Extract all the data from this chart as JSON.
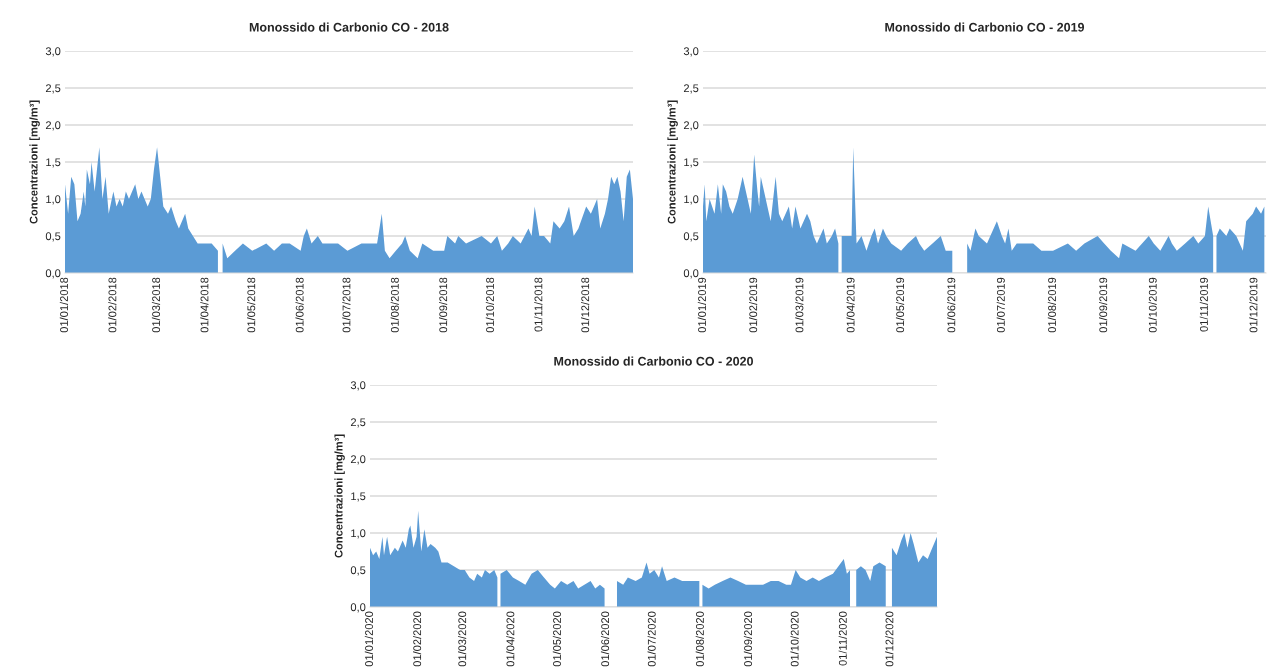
{
  "chart_data": [
    {
      "type": "area",
      "title": "Monossido di Carbonio CO - 2018",
      "ylabel": "Concentrazioni [mg/m³]",
      "grid": "y",
      "xlim": [
        "2018-01-01",
        "2018-12-31"
      ],
      "xticks": [
        {
          "value": "2018-01-01",
          "label": "01/01/2018"
        },
        {
          "value": "2018-02-01",
          "label": "01/02/2018"
        },
        {
          "value": "2018-03-01",
          "label": "01/03/2018"
        },
        {
          "value": "2018-04-01",
          "label": "01/04/2018"
        },
        {
          "value": "2018-05-01",
          "label": "01/05/2018"
        },
        {
          "value": "2018-06-01",
          "label": "01/06/2018"
        },
        {
          "value": "2018-07-01",
          "label": "01/07/2018"
        },
        {
          "value": "2018-08-01",
          "label": "01/08/2018"
        },
        {
          "value": "2018-09-01",
          "label": "01/09/2018"
        },
        {
          "value": "2018-10-01",
          "label": "01/10/2018"
        },
        {
          "value": "2018-11-01",
          "label": "01/11/2018"
        },
        {
          "value": "2018-12-01",
          "label": "01/12/2018"
        }
      ],
      "ylim": [
        0,
        3
      ],
      "yticks": [
        {
          "value": 0,
          "label": "0,0"
        },
        {
          "value": 0.5,
          "label": "0,5"
        },
        {
          "value": 1,
          "label": "1,0"
        },
        {
          "value": 1.5,
          "label": "1,5"
        },
        {
          "value": 2,
          "label": "2,0"
        },
        {
          "value": 2.5,
          "label": "2,5"
        },
        {
          "value": 3,
          "label": "3,0"
        }
      ],
      "x": [
        "2018-01-01",
        "2018-01-03",
        "2018-01-05",
        "2018-01-07",
        "2018-01-09",
        "2018-01-11",
        "2018-01-13",
        "2018-01-14",
        "2018-01-15",
        "2018-01-17",
        "2018-01-18",
        "2018-01-20",
        "2018-01-23",
        "2018-01-25",
        "2018-01-27",
        "2018-01-29",
        "2018-02-01",
        "2018-02-03",
        "2018-02-05",
        "2018-02-07",
        "2018-02-09",
        "2018-02-11",
        "2018-02-13",
        "2018-02-15",
        "2018-02-17",
        "2018-02-19",
        "2018-02-21",
        "2018-02-23",
        "2018-02-25",
        "2018-02-27",
        "2018-03-01",
        "2018-03-02",
        "2018-03-03",
        "2018-03-05",
        "2018-03-08",
        "2018-03-10",
        "2018-03-13",
        "2018-03-15",
        "2018-03-19",
        "2018-03-21",
        "2018-03-24",
        "2018-03-27",
        "2018-04-05",
        "2018-04-09",
        "2018-04-10",
        "2018-04-12",
        "2018-04-15",
        "2018-04-20",
        "2018-04-25",
        "2018-05-01",
        "2018-05-10",
        "2018-05-15",
        "2018-05-20",
        "2018-05-25",
        "2018-06-01",
        "2018-06-03",
        "2018-06-05",
        "2018-06-08",
        "2018-06-12",
        "2018-06-15",
        "2018-06-25",
        "2018-07-01",
        "2018-07-10",
        "2018-07-20",
        "2018-07-23",
        "2018-07-25",
        "2018-07-28",
        "2018-08-01",
        "2018-08-05",
        "2018-08-07",
        "2018-08-10",
        "2018-08-15",
        "2018-08-18",
        "2018-08-25",
        "2018-09-01",
        "2018-09-03",
        "2018-09-08",
        "2018-09-10",
        "2018-09-15",
        "2018-09-25",
        "2018-10-01",
        "2018-10-05",
        "2018-10-08",
        "2018-10-12",
        "2018-10-15",
        "2018-10-20",
        "2018-10-25",
        "2018-10-27",
        "2018-10-29",
        "2018-11-01",
        "2018-11-04",
        "2018-11-08",
        "2018-11-10",
        "2018-11-14",
        "2018-11-17",
        "2018-11-20",
        "2018-11-23",
        "2018-11-26",
        "2018-12-01",
        "2018-12-04",
        "2018-12-06",
        "2018-12-08",
        "2018-12-10",
        "2018-12-13",
        "2018-12-15",
        "2018-12-17",
        "2018-12-19",
        "2018-12-21",
        "2018-12-23",
        "2018-12-25",
        "2018-12-27",
        "2018-12-29",
        "2018-12-31"
      ],
      "series": [
        {
          "color": "#5b9bd5",
          "values": [
            1.2,
            0.8,
            1.3,
            1.2,
            0.7,
            0.8,
            1.1,
            0.9,
            1.4,
            1.2,
            1.5,
            1.1,
            1.7,
            1.0,
            1.3,
            0.8,
            1.1,
            0.9,
            1.0,
            0.9,
            1.1,
            1.0,
            1.1,
            1.2,
            1.0,
            1.1,
            1.0,
            0.9,
            1.0,
            1.4,
            1.7,
            1.5,
            1.3,
            0.9,
            0.8,
            0.9,
            0.7,
            0.6,
            0.8,
            0.6,
            0.5,
            0.4,
            0.4,
            0.3,
            null,
            0.4,
            0.2,
            0.3,
            0.4,
            0.3,
            0.4,
            0.3,
            0.4,
            0.4,
            0.3,
            0.5,
            0.6,
            0.4,
            0.5,
            0.4,
            0.4,
            0.3,
            0.4,
            0.4,
            0.8,
            0.3,
            0.2,
            0.3,
            0.4,
            0.5,
            0.3,
            0.2,
            0.4,
            0.3,
            0.3,
            0.5,
            0.4,
            0.5,
            0.4,
            0.5,
            0.4,
            0.5,
            0.3,
            0.4,
            0.5,
            0.4,
            0.6,
            0.5,
            0.9,
            0.5,
            0.5,
            0.4,
            0.7,
            0.6,
            0.7,
            0.9,
            0.5,
            0.6,
            0.9,
            0.8,
            0.9,
            1.0,
            0.6,
            0.8,
            1.0,
            1.3,
            1.2,
            1.3,
            1.1,
            0.7,
            1.3,
            1.4,
            1.0
          ]
        }
      ]
    },
    {
      "type": "area",
      "title": "Monossido di Carbonio CO - 2019",
      "ylabel": "Concentrazioni [mg/m³]",
      "grid": "y",
      "xlim": [
        "2019-01-01",
        "2019-12-08"
      ],
      "xticks": [
        {
          "value": "2019-01-01",
          "label": "01/01/2019"
        },
        {
          "value": "2019-02-01",
          "label": "01/02/2019"
        },
        {
          "value": "2019-03-01",
          "label": "01/03/2019"
        },
        {
          "value": "2019-04-01",
          "label": "01/04/2019"
        },
        {
          "value": "2019-05-01",
          "label": "01/05/2019"
        },
        {
          "value": "2019-06-01",
          "label": "01/06/2019"
        },
        {
          "value": "2019-07-01",
          "label": "01/07/2019"
        },
        {
          "value": "2019-08-01",
          "label": "01/08/2019"
        },
        {
          "value": "2019-09-01",
          "label": "01/09/2019"
        },
        {
          "value": "2019-10-01",
          "label": "01/10/2019"
        },
        {
          "value": "2019-11-01",
          "label": "01/11/2019"
        },
        {
          "value": "2019-12-01",
          "label": "01/12/2019"
        }
      ],
      "ylim": [
        0,
        3
      ],
      "yticks": [
        {
          "value": 0,
          "label": "0,0"
        },
        {
          "value": 0.5,
          "label": "0,5"
        },
        {
          "value": 1,
          "label": "1,0"
        },
        {
          "value": 1.5,
          "label": "1,5"
        },
        {
          "value": 2,
          "label": "2,0"
        },
        {
          "value": 2.5,
          "label": "2,5"
        },
        {
          "value": 3,
          "label": "3,0"
        }
      ],
      "x": [
        "2019-01-01",
        "2019-01-02",
        "2019-01-03",
        "2019-01-05",
        "2019-01-08",
        "2019-01-10",
        "2019-01-12",
        "2019-01-13",
        "2019-01-15",
        "2019-01-17",
        "2019-01-19",
        "2019-01-22",
        "2019-01-25",
        "2019-01-26",
        "2019-01-28",
        "2019-01-30",
        "2019-02-01",
        "2019-02-03",
        "2019-02-04",
        "2019-02-05",
        "2019-02-07",
        "2019-02-09",
        "2019-02-11",
        "2019-02-13",
        "2019-02-14",
        "2019-02-16",
        "2019-02-18",
        "2019-02-22",
        "2019-02-24",
        "2019-02-26",
        "2019-03-01",
        "2019-03-05",
        "2019-03-07",
        "2019-03-09",
        "2019-03-11",
        "2019-03-13",
        "2019-03-15",
        "2019-03-17",
        "2019-03-20",
        "2019-03-22",
        "2019-03-24",
        "2019-03-25",
        "2019-03-26",
        "2019-04-01",
        "2019-04-02",
        "2019-04-04",
        "2019-04-07",
        "2019-04-10",
        "2019-04-13",
        "2019-04-15",
        "2019-04-17",
        "2019-04-20",
        "2019-04-22",
        "2019-04-25",
        "2019-05-01",
        "2019-05-05",
        "2019-05-10",
        "2019-05-12",
        "2019-05-15",
        "2019-05-20",
        "2019-05-25",
        "2019-05-28",
        "2019-06-01",
        "2019-06-02",
        "2019-06-09",
        "2019-06-10",
        "2019-06-12",
        "2019-06-15",
        "2019-06-17",
        "2019-06-22",
        "2019-06-28",
        "2019-07-01",
        "2019-07-03",
        "2019-07-05",
        "2019-07-07",
        "2019-07-10",
        "2019-07-20",
        "2019-07-25",
        "2019-08-01",
        "2019-08-10",
        "2019-08-15",
        "2019-08-20",
        "2019-08-28",
        "2019-09-01",
        "2019-09-05",
        "2019-09-10",
        "2019-09-12",
        "2019-09-20",
        "2019-09-28",
        "2019-10-01",
        "2019-10-05",
        "2019-10-10",
        "2019-10-12",
        "2019-10-15",
        "2019-10-20",
        "2019-10-25",
        "2019-10-28",
        "2019-11-01",
        "2019-11-03",
        "2019-11-06",
        "2019-11-07",
        "2019-11-08",
        "2019-11-10",
        "2019-11-14",
        "2019-11-16",
        "2019-11-20",
        "2019-11-24",
        "2019-11-26",
        "2019-11-30",
        "2019-12-02",
        "2019-12-05",
        "2019-12-07"
      ],
      "series": [
        {
          "color": "#5b9bd5",
          "values": [
            0.9,
            1.2,
            0.7,
            1.0,
            0.8,
            1.2,
            0.8,
            1.2,
            1.1,
            0.9,
            0.8,
            1.0,
            1.3,
            1.2,
            1.0,
            0.8,
            1.6,
            1.1,
            0.9,
            1.3,
            1.1,
            0.9,
            0.7,
            1.1,
            1.3,
            0.8,
            0.7,
            0.9,
            0.6,
            0.9,
            0.6,
            0.8,
            0.7,
            0.5,
            0.4,
            0.5,
            0.6,
            0.4,
            0.5,
            0.6,
            0.4,
            null,
            0.5,
            0.5,
            1.7,
            0.4,
            0.5,
            0.3,
            0.5,
            0.6,
            0.4,
            0.6,
            0.5,
            0.4,
            0.3,
            0.4,
            0.5,
            0.4,
            0.3,
            0.4,
            0.5,
            0.3,
            0.3,
            null,
            null,
            0.4,
            0.3,
            0.6,
            0.5,
            0.4,
            0.7,
            0.5,
            0.4,
            0.6,
            0.3,
            0.4,
            0.4,
            0.3,
            0.3,
            0.4,
            0.3,
            0.4,
            0.5,
            0.4,
            0.3,
            0.2,
            0.4,
            0.3,
            0.5,
            0.4,
            0.3,
            0.5,
            0.4,
            0.3,
            0.4,
            0.5,
            0.4,
            0.5,
            0.9,
            0.5,
            null,
            0.5,
            0.6,
            0.5,
            0.6,
            0.5,
            0.3,
            0.7,
            0.8,
            0.9,
            0.8,
            0.9
          ]
        }
      ]
    },
    {
      "type": "area",
      "title": "Monossido di Carbonio CO - 2020",
      "ylabel": "Concentrazioni [mg/m³]",
      "grid": "y",
      "xlim": [
        "2020-01-01",
        "2020-12-31"
      ],
      "xticks": [
        {
          "value": "2020-01-01",
          "label": "01/01/2020"
        },
        {
          "value": "2020-02-01",
          "label": "01/02/2020"
        },
        {
          "value": "2020-03-01",
          "label": "01/03/2020"
        },
        {
          "value": "2020-04-01",
          "label": "01/04/2020"
        },
        {
          "value": "2020-05-01",
          "label": "01/05/2020"
        },
        {
          "value": "2020-06-01",
          "label": "01/06/2020"
        },
        {
          "value": "2020-07-01",
          "label": "01/07/2020"
        },
        {
          "value": "2020-08-01",
          "label": "01/08/2020"
        },
        {
          "value": "2020-09-01",
          "label": "01/09/2020"
        },
        {
          "value": "2020-10-01",
          "label": "01/10/2020"
        },
        {
          "value": "2020-11-01",
          "label": "01/11/2020"
        },
        {
          "value": "2020-12-01",
          "label": "01/12/2020"
        }
      ],
      "ylim": [
        0,
        3
      ],
      "yticks": [
        {
          "value": 0,
          "label": "0,0"
        },
        {
          "value": 0.5,
          "label": "0,5"
        },
        {
          "value": 1,
          "label": "1,0"
        },
        {
          "value": 1.5,
          "label": "1,5"
        },
        {
          "value": 2,
          "label": "2,0"
        },
        {
          "value": 2.5,
          "label": "2,5"
        },
        {
          "value": 3,
          "label": "3,0"
        }
      ],
      "x": [
        "2020-01-01",
        "2020-01-03",
        "2020-01-05",
        "2020-01-07",
        "2020-01-09",
        "2020-01-10",
        "2020-01-12",
        "2020-01-14",
        "2020-01-17",
        "2020-01-19",
        "2020-01-22",
        "2020-01-24",
        "2020-01-26",
        "2020-01-27",
        "2020-01-29",
        "2020-01-31",
        "2020-02-01",
        "2020-02-03",
        "2020-02-05",
        "2020-02-07",
        "2020-02-09",
        "2020-02-12",
        "2020-02-14",
        "2020-02-16",
        "2020-02-20",
        "2020-02-24",
        "2020-02-28",
        "2020-03-02",
        "2020-03-05",
        "2020-03-08",
        "2020-03-10",
        "2020-03-13",
        "2020-03-15",
        "2020-03-18",
        "2020-03-21",
        "2020-03-23",
        "2020-03-24",
        "2020-03-25",
        "2020-03-29",
        "2020-04-02",
        "2020-04-06",
        "2020-04-10",
        "2020-04-14",
        "2020-04-18",
        "2020-04-22",
        "2020-04-26",
        "2020-04-29",
        "2020-05-03",
        "2020-05-07",
        "2020-05-11",
        "2020-05-14",
        "2020-05-18",
        "2020-05-22",
        "2020-05-25",
        "2020-05-28",
        "2020-05-31",
        "2020-06-01",
        "2020-06-07",
        "2020-06-08",
        "2020-06-12",
        "2020-06-15",
        "2020-06-20",
        "2020-06-24",
        "2020-06-27",
        "2020-06-29",
        "2020-07-02",
        "2020-07-05",
        "2020-07-07",
        "2020-07-10",
        "2020-07-15",
        "2020-07-20",
        "2020-07-25",
        "2020-07-31",
        "2020-08-01",
        "2020-08-02",
        "2020-08-06",
        "2020-08-10",
        "2020-08-15",
        "2020-08-20",
        "2020-08-25",
        "2020-08-30",
        "2020-09-05",
        "2020-09-10",
        "2020-09-15",
        "2020-09-20",
        "2020-09-25",
        "2020-09-28",
        "2020-10-01",
        "2020-10-04",
        "2020-10-08",
        "2020-10-12",
        "2020-10-16",
        "2020-10-20",
        "2020-10-25",
        "2020-11-01",
        "2020-11-03",
        "2020-11-05",
        "2020-11-08",
        "2020-11-09",
        "2020-11-12",
        "2020-11-15",
        "2020-11-18",
        "2020-11-20",
        "2020-11-24",
        "2020-11-28",
        "2020-12-01",
        "2020-12-02",
        "2020-12-05",
        "2020-12-08",
        "2020-12-10",
        "2020-12-12",
        "2020-12-14",
        "2020-12-16",
        "2020-12-19",
        "2020-12-22",
        "2020-12-25",
        "2020-12-28",
        "2020-12-31"
      ],
      "series": [
        {
          "color": "#5b9bd5",
          "values": [
            0.8,
            0.7,
            0.75,
            0.65,
            0.95,
            0.7,
            0.95,
            0.7,
            0.8,
            0.75,
            0.9,
            0.8,
            1.05,
            1.1,
            0.8,
            0.95,
            1.3,
            0.75,
            1.05,
            0.8,
            0.85,
            0.8,
            0.75,
            0.6,
            0.6,
            0.55,
            0.5,
            0.5,
            0.4,
            0.35,
            0.45,
            0.4,
            0.5,
            0.45,
            0.5,
            0.4,
            null,
            0.45,
            0.5,
            0.4,
            0.35,
            0.3,
            0.45,
            0.5,
            0.4,
            0.3,
            0.25,
            0.35,
            0.3,
            0.35,
            0.25,
            0.3,
            0.35,
            0.25,
            0.3,
            0.25,
            null,
            null,
            0.35,
            0.3,
            0.4,
            0.35,
            0.4,
            0.6,
            0.45,
            0.5,
            0.4,
            0.55,
            0.35,
            0.4,
            0.35,
            0.35,
            0.35,
            null,
            0.3,
            0.25,
            0.3,
            0.35,
            0.4,
            0.35,
            0.3,
            0.3,
            0.3,
            0.35,
            0.35,
            0.3,
            0.3,
            0.5,
            0.4,
            0.35,
            0.4,
            0.35,
            0.4,
            0.45,
            0.65,
            0.45,
            0.5,
            null,
            0.5,
            0.55,
            0.5,
            0.35,
            0.55,
            0.6,
            0.55,
            null,
            0.8,
            0.7,
            0.9,
            1.0,
            0.8,
            1.0,
            0.85,
            0.6,
            0.7,
            0.65,
            0.8,
            0.95
          ]
        }
      ]
    }
  ]
}
